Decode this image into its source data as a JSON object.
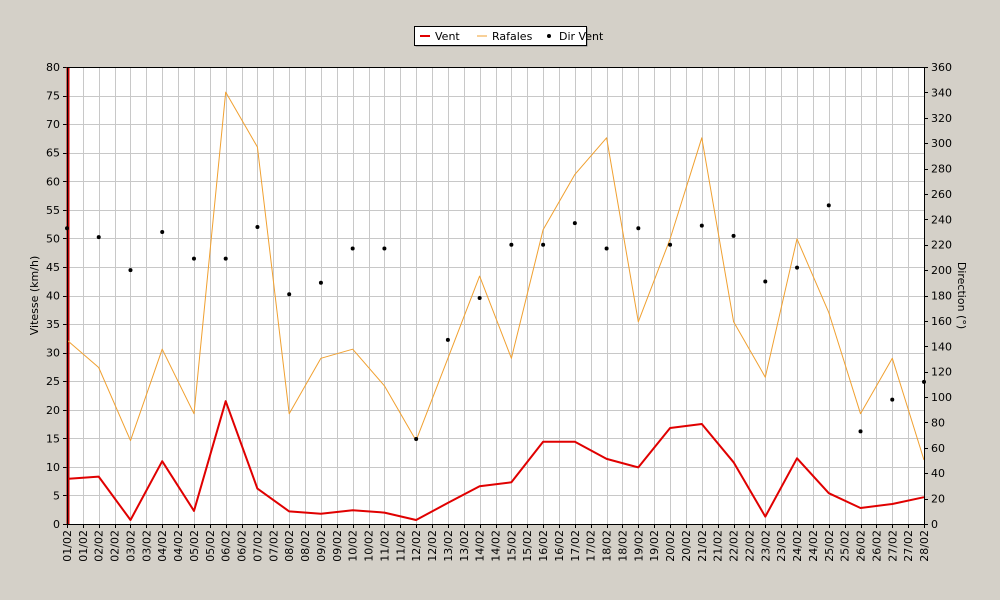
{
  "chart_data": {
    "type": "line",
    "legend": {
      "placement": "top-center",
      "entries": [
        {
          "label": "Vent",
          "color": "#e00000",
          "marker": "line"
        },
        {
          "label": "Rafales",
          "color": "#f0a030",
          "marker": "line"
        },
        {
          "label": "Dir Vent",
          "color": "#000000",
          "marker": "dot"
        }
      ]
    },
    "ylabel_left": "Vitesse (km/h)",
    "ylabel_right": "Direction (°)",
    "ylim_left": [
      0,
      80
    ],
    "ylim_right": [
      0,
      360
    ],
    "yticks_left": [
      0,
      5,
      10,
      15,
      20,
      25,
      30,
      35,
      40,
      45,
      50,
      55,
      60,
      65,
      70,
      75,
      80
    ],
    "yticks_right": [
      0,
      20,
      40,
      60,
      80,
      100,
      120,
      140,
      160,
      180,
      200,
      220,
      240,
      260,
      280,
      300,
      320,
      340,
      360
    ],
    "grid": true,
    "x_tick_labels": [
      "01/02",
      "01/02",
      "02/02",
      "02/02",
      "03/02",
      "03/02",
      "04/02",
      "04/02",
      "05/02",
      "05/02",
      "06/02",
      "06/02",
      "07/02",
      "07/02",
      "08/02",
      "08/02",
      "09/02",
      "09/02",
      "10/02",
      "10/02",
      "11/02",
      "11/02",
      "12/02",
      "12/02",
      "13/02",
      "13/02",
      "14/02",
      "14/02",
      "15/02",
      "15/02",
      "16/02",
      "16/02",
      "17/02",
      "17/02",
      "18/02",
      "18/02",
      "19/02",
      "19/02",
      "20/02",
      "20/02",
      "21/02",
      "21/02",
      "22/02",
      "22/02",
      "23/02",
      "23/02",
      "24/02",
      "24/02",
      "25/02",
      "25/02",
      "26/02",
      "26/02",
      "27/02",
      "27/02",
      "28/02"
    ],
    "x_positions": [
      1,
      2,
      3,
      4,
      5,
      6,
      7,
      8,
      9,
      10,
      11,
      12,
      13,
      14,
      15,
      16,
      17,
      18,
      19,
      20,
      21,
      22,
      23,
      24,
      25,
      26,
      27,
      28,
      29
    ],
    "series": [
      {
        "name": "Vent",
        "axis": "left",
        "style": "line",
        "color": "#e00000",
        "values": [
          7.9,
          8.3,
          0.7,
          11.0,
          2.3,
          21.5,
          6.2,
          2.2,
          1.8,
          2.4,
          2.0,
          0.7,
          3.7,
          6.6,
          7.3,
          14.4,
          14.4,
          11.4,
          9.9,
          16.8,
          17.5,
          10.8,
          1.3,
          11.5,
          5.4,
          2.8,
          3.5,
          4.7
        ]
      },
      {
        "name": "Rafales",
        "axis": "left",
        "style": "line",
        "color": "#f0a030",
        "values": [
          32.2,
          27.4,
          14.6,
          30.6,
          19.3,
          75.6,
          66.0,
          19.3,
          29.0,
          30.6,
          24.2,
          14.6,
          29.0,
          43.4,
          29.0,
          51.5,
          61.2,
          67.6,
          35.4,
          49.9,
          67.6,
          35.4,
          25.7,
          49.9,
          37.0,
          19.3,
          29.0,
          11.2
        ]
      },
      {
        "name": "Dir Vent",
        "axis": "right",
        "style": "dot",
        "color": "#000000",
        "values": [
          233,
          226,
          200,
          230,
          209,
          209,
          234,
          181,
          190,
          217,
          217,
          67,
          145,
          178,
          220,
          220,
          237,
          217,
          233,
          220,
          235,
          227,
          191,
          202,
          251,
          73,
          98,
          112
        ]
      }
    ]
  }
}
